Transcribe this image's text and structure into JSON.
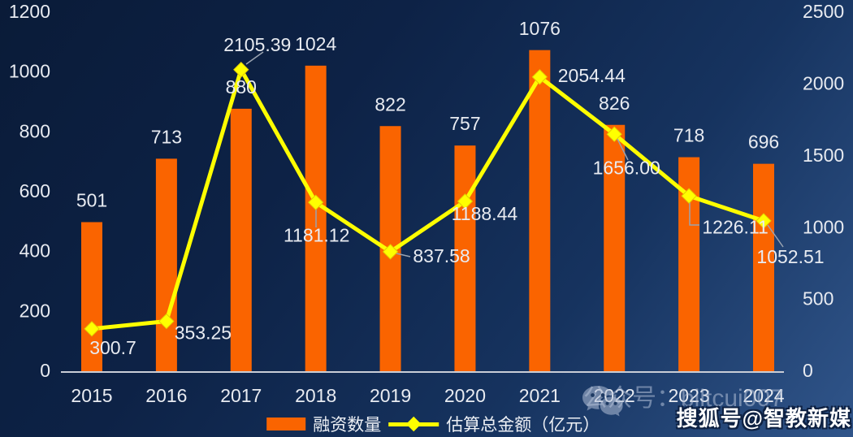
{
  "chart_data": {
    "type": "combo",
    "categories": [
      "2015",
      "2016",
      "2017",
      "2018",
      "2019",
      "2020",
      "2021",
      "2022",
      "2023",
      "2024"
    ],
    "series": [
      {
        "name": "融资数量",
        "type": "bar",
        "axis": "left",
        "color": "#FA6400",
        "values": [
          501,
          713,
          880,
          1024,
          822,
          757,
          1076,
          826,
          718,
          696
        ],
        "labels": [
          "501",
          "713",
          "880",
          "1024",
          "822",
          "757",
          "1076",
          "826",
          "718",
          "696"
        ]
      },
      {
        "name": "估算总金额（亿元）",
        "type": "line",
        "axis": "right",
        "color": "#FEFE00",
        "values": [
          300.7,
          353.25,
          2105.39,
          1181.12,
          837.58,
          1188.44,
          2054.44,
          1656.0,
          1226.11,
          1052.51
        ],
        "labels": [
          "300.7",
          "353.25",
          "2105.39",
          "1181.12",
          "837.58",
          "1188.44",
          "2054.44",
          "1656.00",
          "1226.11",
          "1052.51"
        ]
      }
    ],
    "left_axis": {
      "min": 0,
      "max": 1200,
      "step": 200,
      "ticks": [
        "0",
        "200",
        "400",
        "600",
        "800",
        "1000",
        "1200"
      ]
    },
    "right_axis": {
      "min": 0,
      "max": 2500,
      "step": 500,
      "ticks": [
        "0",
        "500",
        "1000",
        "1500",
        "2000",
        "2500"
      ]
    },
    "grid": false,
    "legend_position": "bottom",
    "title": ""
  },
  "legend": {
    "bar_label": "融资数量",
    "line_label": "估算总金额（亿元）"
  },
  "watermarks": {
    "wechat": "公众号：biltcui007",
    "sohu": "搜狐号@智教新媒"
  },
  "colors": {
    "bar": "#FA6400",
    "line": "#FEFE00",
    "marker": "#FFFF00",
    "text": "#E8EBF1",
    "axis_line": "#C9CDD6",
    "leader": "#9AA3B0",
    "bg_start": "#0A1B38",
    "bg_end": "#30558A"
  }
}
